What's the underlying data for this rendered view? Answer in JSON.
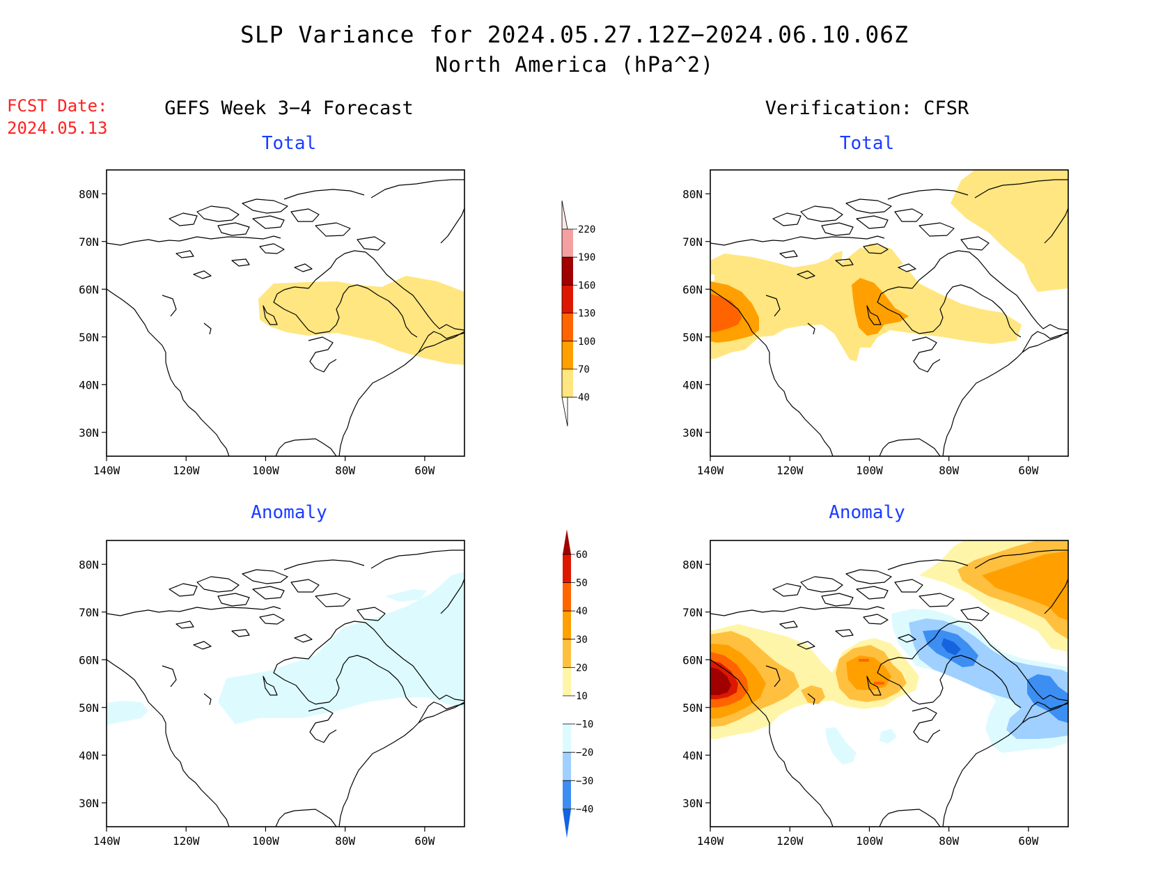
{
  "header": {
    "title_line1": "SLP Variance for 2024.05.27.12Z−2024.06.10.06Z",
    "title_line2": "North America (hPa^2)",
    "fcst_label": "FCST Date:",
    "fcst_date": "2024.05.13"
  },
  "columns": {
    "left": "GEFS Week 3−4 Forecast",
    "right": "Verification: CFSR"
  },
  "panels": [
    {
      "id": "fc-total",
      "title": "Total",
      "kind": "total"
    },
    {
      "id": "ver-total",
      "title": "Total",
      "kind": "total"
    },
    {
      "id": "fc-anom",
      "title": "Anomaly",
      "kind": "anomaly"
    },
    {
      "id": "ver-anom",
      "title": "Anomaly",
      "kind": "anomaly"
    }
  ],
  "axes": {
    "lon_ticks": [
      "140W",
      "120W",
      "100W",
      "80W",
      "60W"
    ],
    "lat_ticks": [
      "80N",
      "70N",
      "60N",
      "50N",
      "40N",
      "30N"
    ],
    "lon_range": [
      -140,
      -50
    ],
    "lat_range": [
      25,
      85
    ]
  },
  "colorbars": {
    "total": {
      "labels": [
        "220",
        "190",
        "160",
        "130",
        "100",
        "70",
        "40"
      ],
      "colors": [
        "#ffe8e8",
        "#f4a0a0",
        "#a00000",
        "#dd1800",
        "#ff6400",
        "#ffa000",
        "#ffe680"
      ]
    },
    "anomaly": {
      "labels": [
        "60",
        "50",
        "40",
        "30",
        "20",
        "10",
        "−10",
        "−20",
        "−30",
        "−40"
      ],
      "colors": [
        "#a00000",
        "#dd1800",
        "#ff6400",
        "#ffa000",
        "#ffc040",
        "#fff5a8",
        "#ffffff",
        "#ddfbff",
        "#9fd0ff",
        "#3c8ef2",
        "#1464e0"
      ]
    }
  },
  "colors": {
    "yellow": "#ffe680",
    "orange": "#ffa000",
    "orange_red": "#ff6400",
    "red": "#dd1800",
    "dark_red": "#a00000",
    "light_yellow": "#fff5a8",
    "light_orange": "#ffc040",
    "cyan": "#ddfbff",
    "light_blue": "#9fd0ff",
    "blue": "#3c8ef2",
    "title_blue": "#1a3cff",
    "fcst_red": "#ff2020"
  }
}
